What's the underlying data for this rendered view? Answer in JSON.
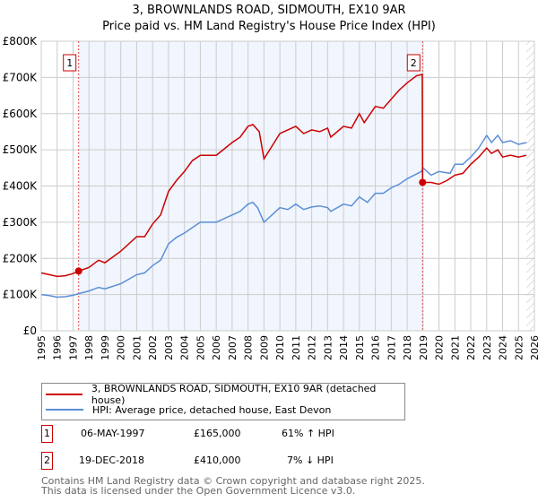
{
  "chart_data": {
    "type": "line",
    "title": "3, BROWNLANDS ROAD, SIDMOUTH, EX10 9AR",
    "subtitle": "Price paid vs. HM Land Registry's House Price Index (HPI)",
    "xlim": [
      1995,
      2026
    ],
    "ylim": [
      0,
      800000
    ],
    "y_ticks": [
      {
        "v": 0,
        "label": "£0"
      },
      {
        "v": 100000,
        "label": "£100K"
      },
      {
        "v": 200000,
        "label": "£200K"
      },
      {
        "v": 300000,
        "label": "£300K"
      },
      {
        "v": 400000,
        "label": "£400K"
      },
      {
        "v": 500000,
        "label": "£500K"
      },
      {
        "v": 600000,
        "label": "£600K"
      },
      {
        "v": 700000,
        "label": "£700K"
      },
      {
        "v": 800000,
        "label": "£800K"
      }
    ],
    "x_ticks": [
      "1995",
      "1996",
      "1997",
      "1998",
      "1999",
      "2000",
      "2001",
      "2002",
      "2003",
      "2004",
      "2005",
      "2006",
      "2007",
      "2008",
      "2009",
      "2010",
      "2011",
      "2012",
      "2013",
      "2014",
      "2015",
      "2016",
      "2017",
      "2018",
      "2019",
      "2020",
      "2021",
      "2022",
      "2023",
      "2024",
      "2025",
      "2026"
    ],
    "grid": true,
    "shaded_range": [
      1997.35,
      2018.97
    ],
    "hatched_from": 2025.5,
    "series": [
      {
        "name": "3, BROWNLANDS ROAD, SIDMOUTH, EX10 9AR (detached house)",
        "color": "#cc0000",
        "x": [
          1995,
          1995.5,
          1996,
          1996.5,
          1997,
          1997.35,
          1998,
          1998.6,
          1999,
          2000,
          2001,
          2001.5,
          2002,
          2002.5,
          2003,
          2003.5,
          2004,
          2004.5,
          2005,
          2006,
          2007,
          2007.5,
          2008,
          2008.3,
          2008.7,
          2009,
          2009.5,
          2010,
          2010.5,
          2011,
          2011.5,
          2012,
          2012.5,
          2013,
          2013.2,
          2014,
          2014.5,
          2015,
          2015.3,
          2016,
          2016.5,
          2017,
          2017.5,
          2018,
          2018.6,
          2018.95,
          2018.97,
          2019.5,
          2020,
          2020.5,
          2021,
          2021.5,
          2022,
          2022.5,
          2023,
          2023.3,
          2023.7,
          2024,
          2024.5,
          2025,
          2025.5
        ],
        "y": [
          160000,
          155000,
          150000,
          152000,
          158000,
          165000,
          175000,
          195000,
          188000,
          220000,
          260000,
          260000,
          295000,
          320000,
          385000,
          415000,
          440000,
          470000,
          485000,
          485000,
          520000,
          535000,
          565000,
          570000,
          550000,
          475000,
          510000,
          545000,
          555000,
          565000,
          545000,
          555000,
          550000,
          560000,
          535000,
          565000,
          560000,
          600000,
          575000,
          620000,
          615000,
          640000,
          665000,
          685000,
          705000,
          708000,
          410000,
          410000,
          405000,
          415000,
          430000,
          435000,
          460000,
          480000,
          505000,
          490000,
          500000,
          480000,
          485000,
          480000,
          485000
        ]
      },
      {
        "name": "HPI: Average price, detached house, East Devon",
        "color": "#5b8fd6",
        "x": [
          1995,
          1995.5,
          1996,
          1996.5,
          1997,
          1997.4,
          1998,
          1998.6,
          1999,
          2000,
          2001,
          2001.5,
          2002,
          2002.5,
          2003,
          2003.5,
          2004,
          2004.5,
          2005,
          2006,
          2007,
          2007.5,
          2008,
          2008.3,
          2008.6,
          2009,
          2009.5,
          2010,
          2010.5,
          2011,
          2011.5,
          2012,
          2012.5,
          2013,
          2013.2,
          2014,
          2014.5,
          2015,
          2015.5,
          2016,
          2016.5,
          2017,
          2017.5,
          2018,
          2018.9,
          2019,
          2019.5,
          2020,
          2020.7,
          2021,
          2021.5,
          2022,
          2022.5,
          2023,
          2023.3,
          2023.7,
          2024,
          2024.5,
          2025,
          2025.5
        ],
        "y": [
          100000,
          97000,
          93000,
          94000,
          98000,
          103000,
          110000,
          120000,
          116000,
          130000,
          155000,
          160000,
          180000,
          195000,
          240000,
          258000,
          270000,
          285000,
          300000,
          300000,
          320000,
          330000,
          350000,
          355000,
          340000,
          300000,
          320000,
          340000,
          335000,
          350000,
          335000,
          342000,
          345000,
          340000,
          330000,
          350000,
          345000,
          370000,
          355000,
          380000,
          380000,
          395000,
          405000,
          420000,
          440000,
          450000,
          430000,
          440000,
          435000,
          460000,
          460000,
          480000,
          505000,
          540000,
          520000,
          540000,
          520000,
          525000,
          515000,
          520000
        ]
      }
    ],
    "annotations": [
      {
        "label": "1",
        "x": 1997.35,
        "y": 165000
      },
      {
        "label": "2",
        "x": 2018.97,
        "y": 410000
      }
    ],
    "legend_placement": "below"
  },
  "transactions": [
    {
      "num": "1",
      "date": "06-MAY-1997",
      "price": "£165,000",
      "hpi": "61% ↑ HPI"
    },
    {
      "num": "2",
      "date": "19-DEC-2018",
      "price": "£410,000",
      "hpi": "7% ↓ HPI"
    }
  ],
  "footer": {
    "line1": "Contains HM Land Registry data © Crown copyright and database right 2025.",
    "line2": "This data is licensed under the Open Government Licence v3.0."
  }
}
